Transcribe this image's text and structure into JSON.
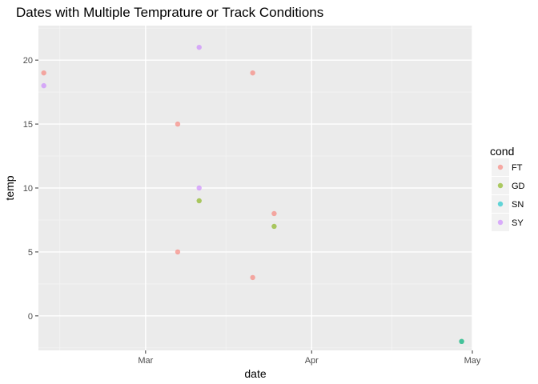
{
  "chart_data": {
    "type": "scatter",
    "title": "Dates with Multiple Temprature or Track Conditions",
    "xlabel": "date",
    "ylabel": "temp",
    "x_is_date": true,
    "xlim": [
      "2017-02-09",
      "2017-05-01"
    ],
    "ylim": [
      -2.7,
      22.7
    ],
    "x_ticks": [
      {
        "value": "2017-03-01",
        "label": "Mar"
      },
      {
        "value": "2017-04-01",
        "label": "Apr"
      },
      {
        "value": "2017-05-01",
        "label": "May"
      }
    ],
    "x_minor_ticks": [
      "2017-02-13",
      "2017-03-16",
      "2017-04-16"
    ],
    "y_ticks": [
      0,
      5,
      10,
      15,
      20
    ],
    "y_minor_ticks": [
      -2.5,
      2.5,
      7.5,
      12.5,
      17.5,
      22.5
    ],
    "grid": true,
    "legend": {
      "title": "cond",
      "position": "right",
      "entries": [
        {
          "label": "FT",
          "color": "#F8766D"
        },
        {
          "label": "GD",
          "color": "#7CAE00"
        },
        {
          "label": "SN",
          "color": "#00BFC4"
        },
        {
          "label": "SY",
          "color": "#C77CFF"
        }
      ]
    },
    "series": [
      {
        "name": "FT",
        "color": "#F8766D",
        "points": [
          {
            "x": "2017-02-10",
            "y": 19
          },
          {
            "x": "2017-03-07",
            "y": 15
          },
          {
            "x": "2017-03-07",
            "y": 5
          },
          {
            "x": "2017-03-21",
            "y": 19
          },
          {
            "x": "2017-03-21",
            "y": 3
          },
          {
            "x": "2017-03-25",
            "y": 8
          }
        ]
      },
      {
        "name": "GD",
        "color": "#7CAE00",
        "points": [
          {
            "x": "2017-03-11",
            "y": 9
          },
          {
            "x": "2017-03-25",
            "y": 7
          },
          {
            "x": "2017-04-29",
            "y": -2
          }
        ]
      },
      {
        "name": "SN",
        "color": "#00BFC4",
        "points": [
          {
            "x": "2017-04-29",
            "y": -2
          }
        ]
      },
      {
        "name": "SY",
        "color": "#C77CFF",
        "points": [
          {
            "x": "2017-02-10",
            "y": 18
          },
          {
            "x": "2017-03-11",
            "y": 21
          },
          {
            "x": "2017-03-11",
            "y": 10
          }
        ]
      }
    ]
  }
}
